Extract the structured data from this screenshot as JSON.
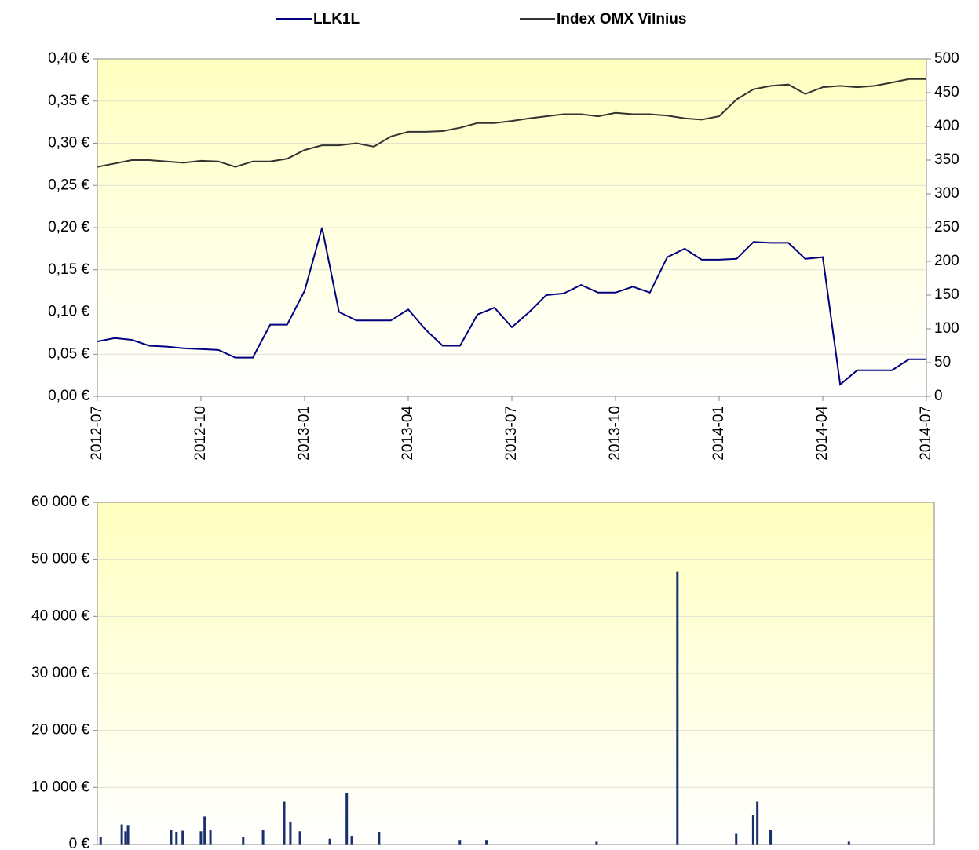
{
  "chart_data": [
    {
      "type": "line",
      "x": [
        2012.5,
        2012.542,
        2012.583,
        2012.625,
        2012.667,
        2012.708,
        2012.75,
        2012.792,
        2012.833,
        2012.875,
        2012.917,
        2012.958,
        2013,
        2013.042,
        2013.083,
        2013.125,
        2013.167,
        2013.208,
        2013.25,
        2013.292,
        2013.333,
        2013.375,
        2013.417,
        2013.458,
        2013.5,
        2013.542,
        2013.583,
        2013.625,
        2013.667,
        2013.708,
        2013.75,
        2013.792,
        2013.833,
        2013.875,
        2013.917,
        2013.958,
        2014,
        2014.042,
        2014.083,
        2014.125,
        2014.167,
        2014.208,
        2014.25,
        2014.292,
        2014.333,
        2014.375,
        2014.417,
        2014.458,
        2014.5
      ],
      "series": [
        {
          "name": "LLK1L",
          "color": "#000080",
          "values": [
            0.065,
            0.069,
            0.067,
            0.06,
            0.059,
            0.057,
            0.056,
            0.055,
            0.046,
            0.046,
            0.085,
            0.085,
            0.125,
            0.2,
            0.1,
            0.09,
            0.09,
            0.09,
            0.103,
            0.079,
            0.06,
            0.06,
            0.097,
            0.105,
            0.082,
            0.1,
            0.12,
            0.122,
            0.132,
            0.123,
            0.123,
            0.13,
            0.123,
            0.165,
            0.175,
            0.162,
            0.162,
            0.163,
            0.183,
            0.182,
            0.182,
            0.163,
            0.165,
            0.014,
            0.031,
            0.031,
            0.031,
            0.044,
            0.044
          ]
        },
        {
          "name": "Index OMX Vilnius",
          "color": "#333333",
          "axis": "y2",
          "values": [
            340,
            345,
            350,
            350,
            348,
            346,
            349,
            348,
            340,
            348,
            348,
            352,
            365,
            372,
            372,
            375,
            370,
            385,
            392,
            392,
            393,
            398,
            405,
            405,
            408,
            412,
            415,
            418,
            418,
            415,
            420,
            418,
            418,
            416,
            412,
            410,
            415,
            440,
            455,
            460,
            462,
            448,
            458,
            460,
            458,
            460,
            465,
            470,
            470
          ]
        }
      ],
      "xlim": [
        2012.5,
        2014.5
      ],
      "xticks": [
        {
          "value": 2012.5,
          "label": "2012-07"
        },
        {
          "value": 2012.75,
          "label": "2012-10"
        },
        {
          "value": 2013,
          "label": "2013-01"
        },
        {
          "value": 2013.25,
          "label": "2013-04"
        },
        {
          "value": 2013.5,
          "label": "2013-07"
        },
        {
          "value": 2013.75,
          "label": "2013-10"
        },
        {
          "value": 2014,
          "label": "2014-01"
        },
        {
          "value": 2014.25,
          "label": "2014-04"
        },
        {
          "value": 2014.5,
          "label": "2014-07"
        }
      ],
      "ylim": [
        0,
        0.4
      ],
      "yticks": [
        {
          "value": 0,
          "label": "0,00 €"
        },
        {
          "value": 0.05,
          "label": "0,05 €"
        },
        {
          "value": 0.1,
          "label": "0,10 €"
        },
        {
          "value": 0.15,
          "label": "0,15 €"
        },
        {
          "value": 0.2,
          "label": "0,20 €"
        },
        {
          "value": 0.25,
          "label": "0,25 €"
        },
        {
          "value": 0.3,
          "label": "0,30 €"
        },
        {
          "value": 0.35,
          "label": "0,35 €"
        },
        {
          "value": 0.4,
          "label": "0,40 €"
        }
      ],
      "y2lim": [
        0,
        500
      ],
      "y2ticks": [
        0,
        50,
        100,
        150,
        200,
        250,
        300,
        350,
        400,
        450,
        500
      ],
      "grid": true,
      "legend": "top"
    },
    {
      "type": "bar",
      "color": "#1a2f6e",
      "x": [
        2012.508,
        2012.559,
        2012.568,
        2012.574,
        2012.678,
        2012.691,
        2012.706,
        2012.75,
        2012.759,
        2012.773,
        2012.852,
        2012.9,
        2012.951,
        2012.966,
        2012.989,
        2013.061,
        2013.102,
        2013.114,
        2013.18,
        2013.375,
        2013.439,
        2013.705,
        2013.9,
        2014.042,
        2014.083,
        2014.093,
        2014.125,
        2014.314
      ],
      "values": [
        1300,
        3500,
        2300,
        3400,
        2600,
        2200,
        2400,
        2300,
        4900,
        2500,
        1300,
        2600,
        7500,
        4000,
        2300,
        1000,
        9000,
        1500,
        2200,
        800,
        800,
        500,
        47800,
        2000,
        5100,
        7500,
        2500,
        500
      ],
      "xlim": [
        2012.5,
        2014.52
      ],
      "ylim": [
        0,
        60000
      ],
      "yticks": [
        {
          "value": 0,
          "label": "0 €"
        },
        {
          "value": 10000,
          "label": "10 000 €"
        },
        {
          "value": 20000,
          "label": "20 000 €"
        },
        {
          "value": 30000,
          "label": "30 000 €"
        },
        {
          "value": 40000,
          "label": "40 000 €"
        },
        {
          "value": 50000,
          "label": "50 000 €"
        },
        {
          "value": 60000,
          "label": "60 000 €"
        }
      ],
      "grid": true
    }
  ]
}
